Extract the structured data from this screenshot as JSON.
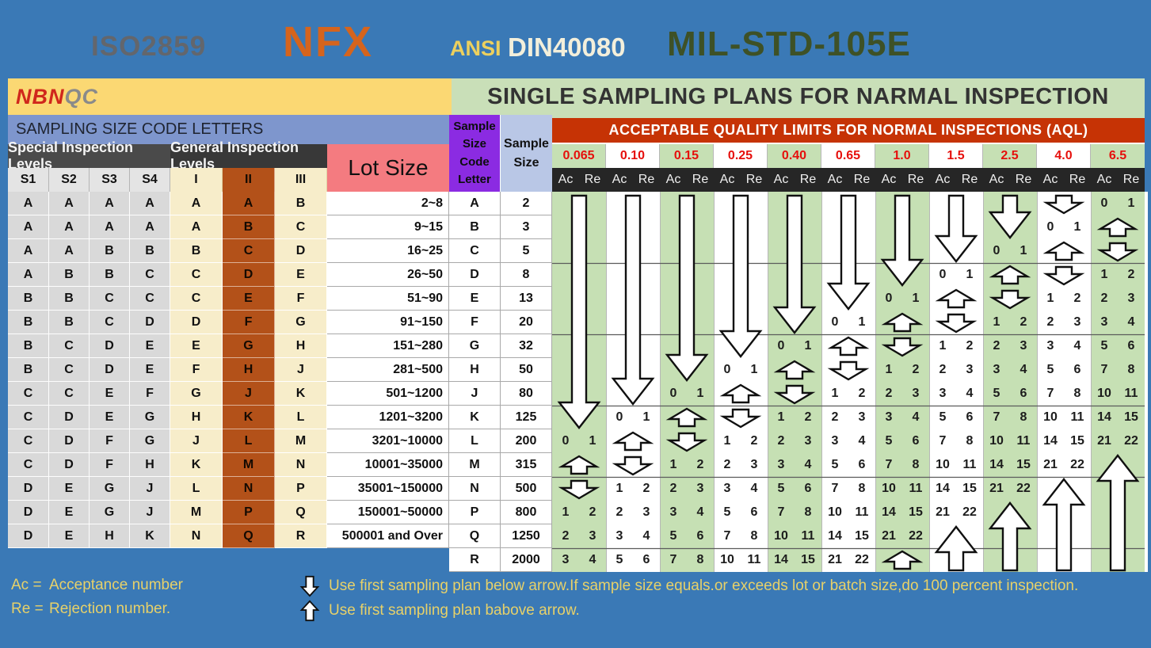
{
  "topbar": {
    "iso": "ISO2859",
    "nfx": "NFX",
    "ansi": "ANSI",
    "din": "DIN40080",
    "mil": "MIL-STD-105E"
  },
  "header": {
    "logo_nbn": "NBN",
    "logo_qc": "QC",
    "title": "SINGLE SAMPLING PLANS FOR NARMAL INSPECTION",
    "codes_band": "SAMPLING SIZE CODE LETTERS",
    "special_header": "Special Inspection Levels",
    "general_header": "General Inspection Levels",
    "lot_header": "Lot Size",
    "code_letter_header": "Sample\nSize\nCode\nLetter",
    "sample_size_header": "Sample\nSize",
    "aql_band": "ACCEPTABLE QUALITY LIMITS FOR NORMAL INSPECTIONS (AQL)"
  },
  "left_table": {
    "special_cols": [
      "S1",
      "S2",
      "S3",
      "S4"
    ],
    "general_cols": [
      "I",
      "II",
      "III"
    ]
  },
  "aql": {
    "values": [
      "0.065",
      "0.10",
      "0.15",
      "0.25",
      "0.40",
      "0.65",
      "1.0",
      "1.5",
      "2.5",
      "4.0",
      "6.5"
    ],
    "acre": [
      "Ac",
      "Re"
    ]
  },
  "rows": [
    {
      "letter": "A",
      "special": [
        "A",
        "A",
        "A",
        "A"
      ],
      "general": [
        "A",
        "A",
        "B"
      ],
      "lot": "2~8",
      "sample_size": "2",
      "plans": [
        "",
        "",
        "",
        "",
        "",
        "",
        "",
        "",
        "",
        "",
        "0 1"
      ]
    },
    {
      "letter": "B",
      "special": [
        "A",
        "A",
        "A",
        "A"
      ],
      "general": [
        "A",
        "B",
        "C"
      ],
      "lot": "9~15",
      "sample_size": "3",
      "plans": [
        "",
        "",
        "",
        "",
        "",
        "",
        "",
        "",
        "",
        "0 1",
        ""
      ]
    },
    {
      "letter": "C",
      "special": [
        "A",
        "A",
        "B",
        "B"
      ],
      "general": [
        "B",
        "C",
        "D"
      ],
      "lot": "16~25",
      "sample_size": "5",
      "plans": [
        "",
        "",
        "",
        "",
        "",
        "",
        "",
        "",
        "0 1",
        "",
        ""
      ]
    },
    {
      "letter": "D",
      "special": [
        "A",
        "B",
        "B",
        "C"
      ],
      "general": [
        "C",
        "D",
        "E"
      ],
      "lot": "26~50",
      "sample_size": "8",
      "plans": [
        "",
        "",
        "",
        "",
        "",
        "",
        "",
        "0 1",
        "",
        "",
        "1 2"
      ]
    },
    {
      "letter": "E",
      "special": [
        "B",
        "B",
        "C",
        "C"
      ],
      "general": [
        "C",
        "E",
        "F"
      ],
      "lot": "51~90",
      "sample_size": "13",
      "plans": [
        "",
        "",
        "",
        "",
        "",
        "",
        "0 1",
        "",
        "",
        "1 2",
        "2 3"
      ]
    },
    {
      "letter": "F",
      "special": [
        "B",
        "B",
        "C",
        "D"
      ],
      "general": [
        "D",
        "F",
        "G"
      ],
      "lot": "91~150",
      "sample_size": "20",
      "plans": [
        "",
        "",
        "",
        "",
        "",
        "0 1",
        "",
        "",
        "1 2",
        "2 3",
        "3 4"
      ]
    },
    {
      "letter": "G",
      "special": [
        "B",
        "C",
        "D",
        "E"
      ],
      "general": [
        "E",
        "G",
        "H"
      ],
      "lot": "151~280",
      "sample_size": "32",
      "plans": [
        "",
        "",
        "",
        "",
        "0 1",
        "",
        "",
        "1 2",
        "2 3",
        "3 4",
        "5 6"
      ]
    },
    {
      "letter": "H",
      "special": [
        "B",
        "C",
        "D",
        "E"
      ],
      "general": [
        "F",
        "H",
        "J"
      ],
      "lot": "281~500",
      "sample_size": "50",
      "plans": [
        "",
        "",
        "",
        "0 1",
        "",
        "",
        "1 2",
        "2 3",
        "3 4",
        "5 6",
        "7 8"
      ]
    },
    {
      "letter": "J",
      "special": [
        "C",
        "C",
        "E",
        "F"
      ],
      "general": [
        "G",
        "J",
        "K"
      ],
      "lot": "501~1200",
      "sample_size": "80",
      "plans": [
        "",
        "",
        "0 1",
        "",
        "",
        "1 2",
        "2 3",
        "3 4",
        "5 6",
        "7 8",
        "10 11"
      ]
    },
    {
      "letter": "K",
      "special": [
        "C",
        "D",
        "E",
        "G"
      ],
      "general": [
        "H",
        "K",
        "L"
      ],
      "lot": "1201~3200",
      "sample_size": "125",
      "plans": [
        "",
        "0 1",
        "",
        "",
        "1 2",
        "2 3",
        "3 4",
        "5 6",
        "7 8",
        "10 11",
        "14 15"
      ]
    },
    {
      "letter": "L",
      "special": [
        "C",
        "D",
        "F",
        "G"
      ],
      "general": [
        "J",
        "L",
        "M"
      ],
      "lot": "3201~10000",
      "sample_size": "200",
      "plans": [
        "0 1",
        "",
        "",
        "1 2",
        "2 3",
        "3 4",
        "5 6",
        "7 8",
        "10 11",
        "14 15",
        "21 22"
      ]
    },
    {
      "letter": "M",
      "special": [
        "C",
        "D",
        "F",
        "H"
      ],
      "general": [
        "K",
        "M",
        "N"
      ],
      "lot": "10001~35000",
      "sample_size": "315",
      "plans": [
        "",
        "",
        "1 2",
        "2 3",
        "3 4",
        "5 6",
        "7 8",
        "10 11",
        "14 15",
        "21 22",
        ""
      ]
    },
    {
      "letter": "N",
      "special": [
        "D",
        "E",
        "G",
        "J"
      ],
      "general": [
        "L",
        "N",
        "P"
      ],
      "lot": "35001~150000",
      "sample_size": "500",
      "plans": [
        "",
        "1 2",
        "2 3",
        "3 4",
        "5 6",
        "7 8",
        "10 11",
        "14 15",
        "21 22",
        "",
        ""
      ]
    },
    {
      "letter": "P",
      "special": [
        "D",
        "E",
        "G",
        "J"
      ],
      "general": [
        "M",
        "P",
        "Q"
      ],
      "lot": "150001~50000",
      "sample_size": "800",
      "plans": [
        "1 2",
        "2 3",
        "3 4",
        "5 6",
        "7 8",
        "10 11",
        "14 15",
        "21 22",
        "",
        "",
        ""
      ]
    },
    {
      "letter": "Q",
      "special": [
        "D",
        "E",
        "H",
        "K"
      ],
      "general": [
        "N",
        "Q",
        "R"
      ],
      "lot": "500001 and Over",
      "sample_size": "1250",
      "plans": [
        "2 3",
        "3 4",
        "5 6",
        "7 8",
        "10 11",
        "14 15",
        "21 22",
        "",
        "",
        "",
        ""
      ]
    },
    {
      "letter": "R",
      "special": null,
      "general": null,
      "lot": null,
      "sample_size": "2000",
      "plans": [
        "3 4",
        "5 6",
        "7 8",
        "10 11",
        "14 15",
        "21 22",
        "",
        "",
        "",
        "",
        ""
      ]
    }
  ],
  "arrows": [
    {
      "col": 0,
      "from": 0,
      "to": 9,
      "dir": "down"
    },
    {
      "col": 1,
      "from": 0,
      "to": 8,
      "dir": "down"
    },
    {
      "col": 2,
      "from": 0,
      "to": 7,
      "dir": "down"
    },
    {
      "col": 3,
      "from": 0,
      "to": 6,
      "dir": "down"
    },
    {
      "col": 4,
      "from": 0,
      "to": 5,
      "dir": "down"
    },
    {
      "col": 5,
      "from": 0,
      "to": 4,
      "dir": "down"
    },
    {
      "col": 6,
      "from": 0,
      "to": 3,
      "dir": "down"
    },
    {
      "col": 7,
      "from": 0,
      "to": 2,
      "dir": "down"
    },
    {
      "col": 8,
      "from": 0,
      "to": 1,
      "dir": "down"
    },
    {
      "col": 9,
      "from": 0,
      "to": 0,
      "dir": "down"
    },
    {
      "col": 10,
      "from": 1,
      "to": 1,
      "dir": "up"
    },
    {
      "col": 10,
      "from": 2,
      "to": 2,
      "dir": "down"
    },
    {
      "col": 9,
      "from": 2,
      "to": 2,
      "dir": "up"
    },
    {
      "col": 9,
      "from": 3,
      "to": 3,
      "dir": "down"
    },
    {
      "col": 8,
      "from": 3,
      "to": 3,
      "dir": "up"
    },
    {
      "col": 8,
      "from": 4,
      "to": 4,
      "dir": "down"
    },
    {
      "col": 7,
      "from": 4,
      "to": 4,
      "dir": "up"
    },
    {
      "col": 7,
      "from": 5,
      "to": 5,
      "dir": "down"
    },
    {
      "col": 6,
      "from": 5,
      "to": 5,
      "dir": "up"
    },
    {
      "col": 6,
      "from": 6,
      "to": 6,
      "dir": "down"
    },
    {
      "col": 5,
      "from": 6,
      "to": 6,
      "dir": "up"
    },
    {
      "col": 5,
      "from": 7,
      "to": 7,
      "dir": "down"
    },
    {
      "col": 4,
      "from": 7,
      "to": 7,
      "dir": "up"
    },
    {
      "col": 4,
      "from": 8,
      "to": 8,
      "dir": "down"
    },
    {
      "col": 3,
      "from": 8,
      "to": 8,
      "dir": "up"
    },
    {
      "col": 3,
      "from": 9,
      "to": 9,
      "dir": "down"
    },
    {
      "col": 2,
      "from": 9,
      "to": 9,
      "dir": "up"
    },
    {
      "col": 2,
      "from": 10,
      "to": 10,
      "dir": "down"
    },
    {
      "col": 1,
      "from": 10,
      "to": 10,
      "dir": "up"
    },
    {
      "col": 1,
      "from": 11,
      "to": 11,
      "dir": "down"
    },
    {
      "col": 0,
      "from": 11,
      "to": 11,
      "dir": "up"
    },
    {
      "col": 0,
      "from": 12,
      "to": 12,
      "dir": "down"
    },
    {
      "col": 6,
      "from": 15,
      "to": 15,
      "dir": "up"
    },
    {
      "col": 7,
      "from": 14,
      "to": 15,
      "dir": "up"
    },
    {
      "col": 8,
      "from": 13,
      "to": 15,
      "dir": "up"
    },
    {
      "col": 9,
      "from": 12,
      "to": 15,
      "dir": "up"
    },
    {
      "col": 10,
      "from": 11,
      "to": 15,
      "dir": "up"
    }
  ],
  "legend": {
    "ac_label": "Ac =",
    "ac_text": "Acceptance number",
    "re_label": "Re =",
    "re_text": "Rejection number.",
    "down_text": "Use first sampling plan below arrow.If sample size equals.or exceeds lot or batch size,do 100 percent inspection.",
    "up_text": "Use first sampling plan babove arrow."
  },
  "colors": {
    "page_blue": "#3a79b6",
    "yellow_header": "#fbd873",
    "green_header": "#c9dfb8",
    "codes_band_blue": "#7e96cd",
    "purple_header": "#8b2be2",
    "periwinkle_header": "#b9c7e6",
    "lot_pink": "#f47b80",
    "level2_orange": "#b35119",
    "aql_band_red": "#c63305",
    "aql_value_red": "#e60f0c",
    "grid_green": "#c6e0b4",
    "dark_band": "#383838",
    "acre_band": "#262626",
    "legend_yellow": "#e7d169",
    "logo_red": "#d0271c",
    "nfx_orange": "#d5641d",
    "mil_green": "#3e5126"
  }
}
